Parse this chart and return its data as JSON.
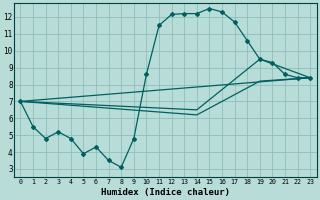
{
  "xlabel": "Humidex (Indice chaleur)",
  "bg_color": "#b8dcd8",
  "grid_color": "#90bfba",
  "line_color": "#006060",
  "xlim": [
    -0.5,
    23.5
  ],
  "ylim": [
    2.5,
    12.8
  ],
  "yticks": [
    3,
    4,
    5,
    6,
    7,
    8,
    9,
    10,
    11,
    12
  ],
  "xticks": [
    0,
    1,
    2,
    3,
    4,
    5,
    6,
    7,
    8,
    9,
    10,
    11,
    12,
    13,
    14,
    15,
    16,
    17,
    18,
    19,
    20,
    21,
    22,
    23
  ],
  "line1_x": [
    0,
    1,
    2,
    3,
    4,
    5,
    6,
    7,
    8,
    9,
    10,
    11,
    12,
    13,
    14,
    15,
    16,
    17,
    18,
    19,
    20,
    21,
    22,
    23
  ],
  "line1_y": [
    7.0,
    5.5,
    4.8,
    5.2,
    4.8,
    3.9,
    4.3,
    3.5,
    3.1,
    4.8,
    8.6,
    11.5,
    12.15,
    12.2,
    12.2,
    12.5,
    12.3,
    11.7,
    10.6,
    9.5,
    9.3,
    8.6,
    8.4,
    8.4
  ],
  "line2_x": [
    0,
    23
  ],
  "line2_y": [
    7.0,
    8.4
  ],
  "line3_x": [
    0,
    14,
    19,
    23
  ],
  "line3_y": [
    7.0,
    6.5,
    9.5,
    8.4
  ],
  "line4_x": [
    0,
    14,
    19,
    23
  ],
  "line4_y": [
    7.0,
    6.2,
    8.2,
    8.4
  ]
}
